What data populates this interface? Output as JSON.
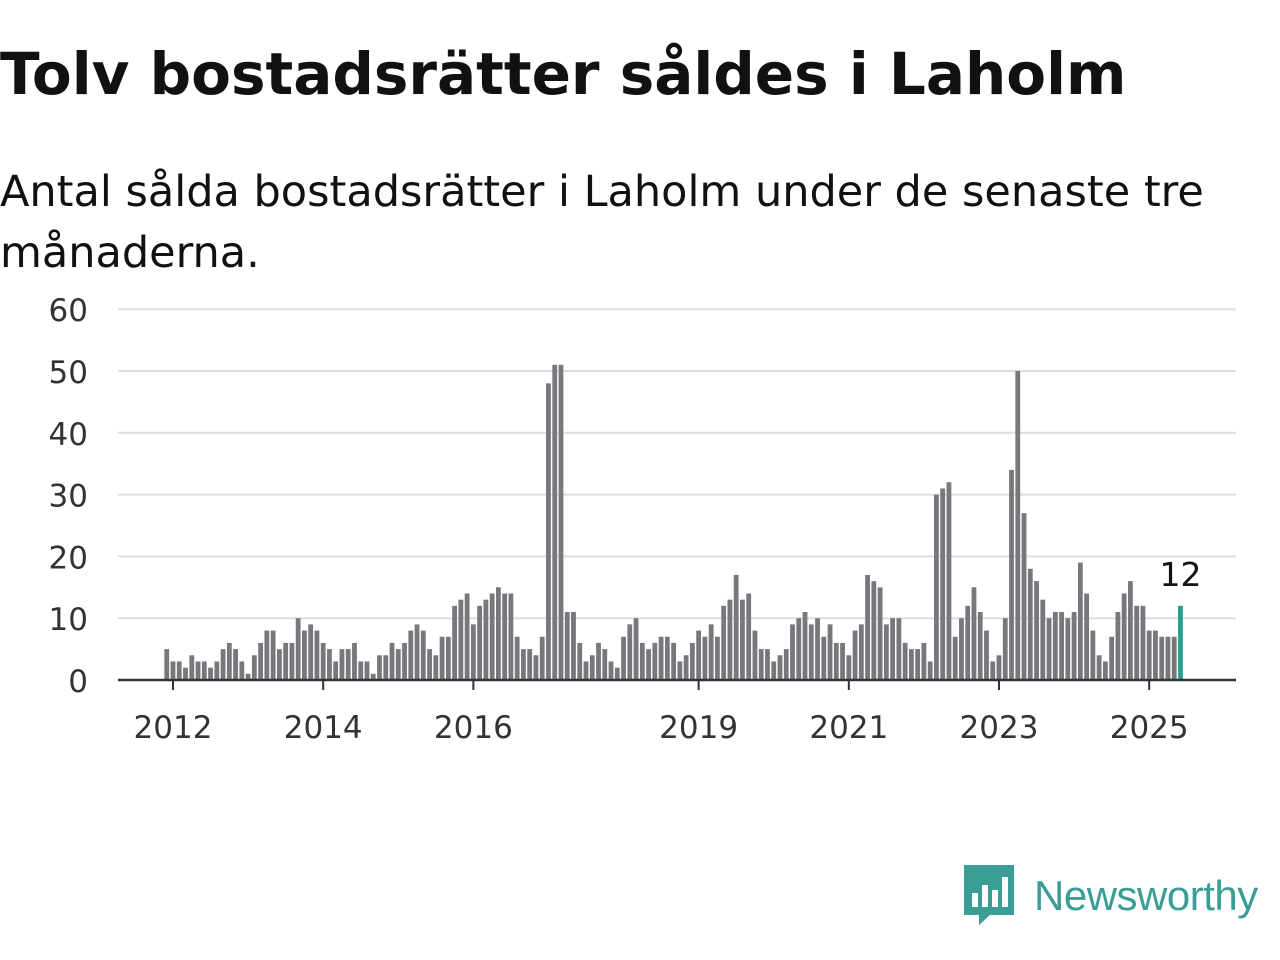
{
  "title": "Tolv bostadsrätter såldes i Laholm",
  "subtitle": "Antal sålda bostadsrätter i Laholm under de senaste tre månaderna.",
  "brand": {
    "name": "Newsworthy",
    "icon": "newsworthy-logo-icon",
    "color": "#3a9e97"
  },
  "chart_data": {
    "type": "bar",
    "title": "",
    "xlabel": "",
    "ylabel": "",
    "ylim": [
      0,
      60
    ],
    "yticks": [
      0,
      10,
      20,
      30,
      40,
      50,
      60
    ],
    "xticks": [
      "2012",
      "2014",
      "2016",
      "2019",
      "2021",
      "2023",
      "2025"
    ],
    "grid": true,
    "bar_color": "#78777c",
    "highlight_color": "#2a9d8f",
    "highlight_label": "12",
    "start": "2011-12",
    "values": [
      5,
      3,
      3,
      2,
      4,
      3,
      3,
      2,
      3,
      5,
      6,
      5,
      3,
      1,
      4,
      6,
      8,
      8,
      5,
      6,
      6,
      10,
      8,
      9,
      8,
      6,
      5,
      3,
      5,
      5,
      6,
      3,
      3,
      1,
      4,
      4,
      6,
      5,
      6,
      8,
      9,
      8,
      5,
      4,
      7,
      7,
      12,
      13,
      14,
      9,
      12,
      13,
      14,
      15,
      14,
      14,
      7,
      5,
      5,
      4,
      7,
      48,
      51,
      51,
      11,
      11,
      6,
      3,
      4,
      6,
      5,
      3,
      2,
      7,
      9,
      10,
      6,
      5,
      6,
      7,
      7,
      6,
      3,
      4,
      6,
      8,
      7,
      9,
      7,
      12,
      13,
      17,
      13,
      14,
      8,
      5,
      5,
      3,
      4,
      5,
      9,
      10,
      11,
      9,
      10,
      7,
      9,
      6,
      6,
      4,
      8,
      9,
      17,
      16,
      15,
      9,
      10,
      10,
      6,
      5,
      5,
      6,
      3,
      30,
      31,
      32,
      7,
      10,
      12,
      15,
      11,
      8,
      3,
      4,
      10,
      34,
      50,
      27,
      18,
      16,
      13,
      10,
      11,
      11,
      10,
      11,
      19,
      14,
      8,
      4,
      3,
      7,
      11,
      14,
      16,
      12,
      12,
      8,
      8,
      7,
      7,
      7,
      12
    ]
  }
}
